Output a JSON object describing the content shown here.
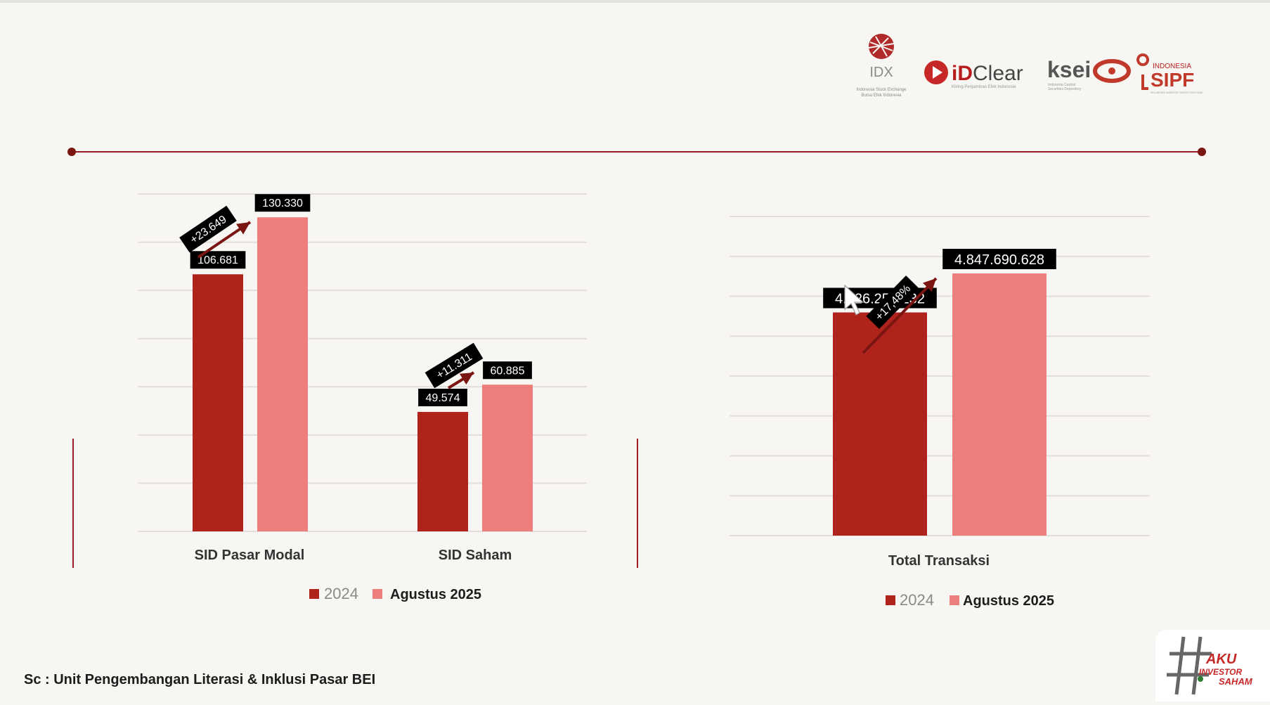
{
  "logos": {
    "idx": {
      "name": "IDX",
      "tagline_line1": "Indonesia Stock Exchange",
      "tagline_line2": "Bursa Efek Indonesia"
    },
    "idclear": {
      "name_bold": "iD",
      "name_light": "Clear",
      "tagline": "Kliring Penjaminan Efek Indonesia"
    },
    "ksei": {
      "name": "ksei",
      "tagline_line1": "Indonesia Central",
      "tagline_line2": "Securities Depository"
    },
    "sipf": {
      "name": "SIPF",
      "prefix": "INDONESIA",
      "tagline": "SECURITIES INVESTOR PROTECTION FUND"
    }
  },
  "colors": {
    "series_2024": "#b0231c",
    "series_aug2025": "#ec7f7b",
    "line_accent": "#9a1e1e",
    "arrow": "#7a1512",
    "label_bg": "#000000",
    "grid": "#e2dedb"
  },
  "chart_data": [
    {
      "type": "bar",
      "categories": [
        "SID Pasar Modal",
        "SID Saham"
      ],
      "series": [
        {
          "name": "2024",
          "values": [
            106681,
            49574
          ],
          "labels": [
            "106.681",
            "49.574"
          ]
        },
        {
          "name": "Agustus 2025",
          "values": [
            130330,
            60885
          ],
          "labels": [
            "130.330",
            "60.885"
          ]
        }
      ],
      "annotations": [
        "+23.649",
        "+11.311"
      ],
      "legend": [
        "2024",
        "Agustus 2025"
      ],
      "legend_position": "bottom",
      "grid": true,
      "ylim": [
        0,
        140000
      ]
    },
    {
      "type": "bar",
      "categories": [
        "Total Transaksi"
      ],
      "series": [
        {
          "name": "2024",
          "values": [
            4126250232
          ],
          "labels": [
            "4.126.250.232"
          ]
        },
        {
          "name": "Agustus 2025",
          "values": [
            4847690628
          ],
          "labels": [
            "4.847.690.628"
          ]
        }
      ],
      "annotations": [
        "+17,48%"
      ],
      "legend": [
        "2024",
        "Agustus 2025"
      ],
      "legend_position": "bottom",
      "grid": true,
      "ylim": [
        0,
        5900000000
      ]
    }
  ],
  "footer": {
    "source": "Sc : Unit Pengembangan Literasi & Inklusi Pasar BEI",
    "badge_line1": "AKU",
    "badge_line2": "INVESTOR",
    "badge_line3": "SAHAM"
  }
}
